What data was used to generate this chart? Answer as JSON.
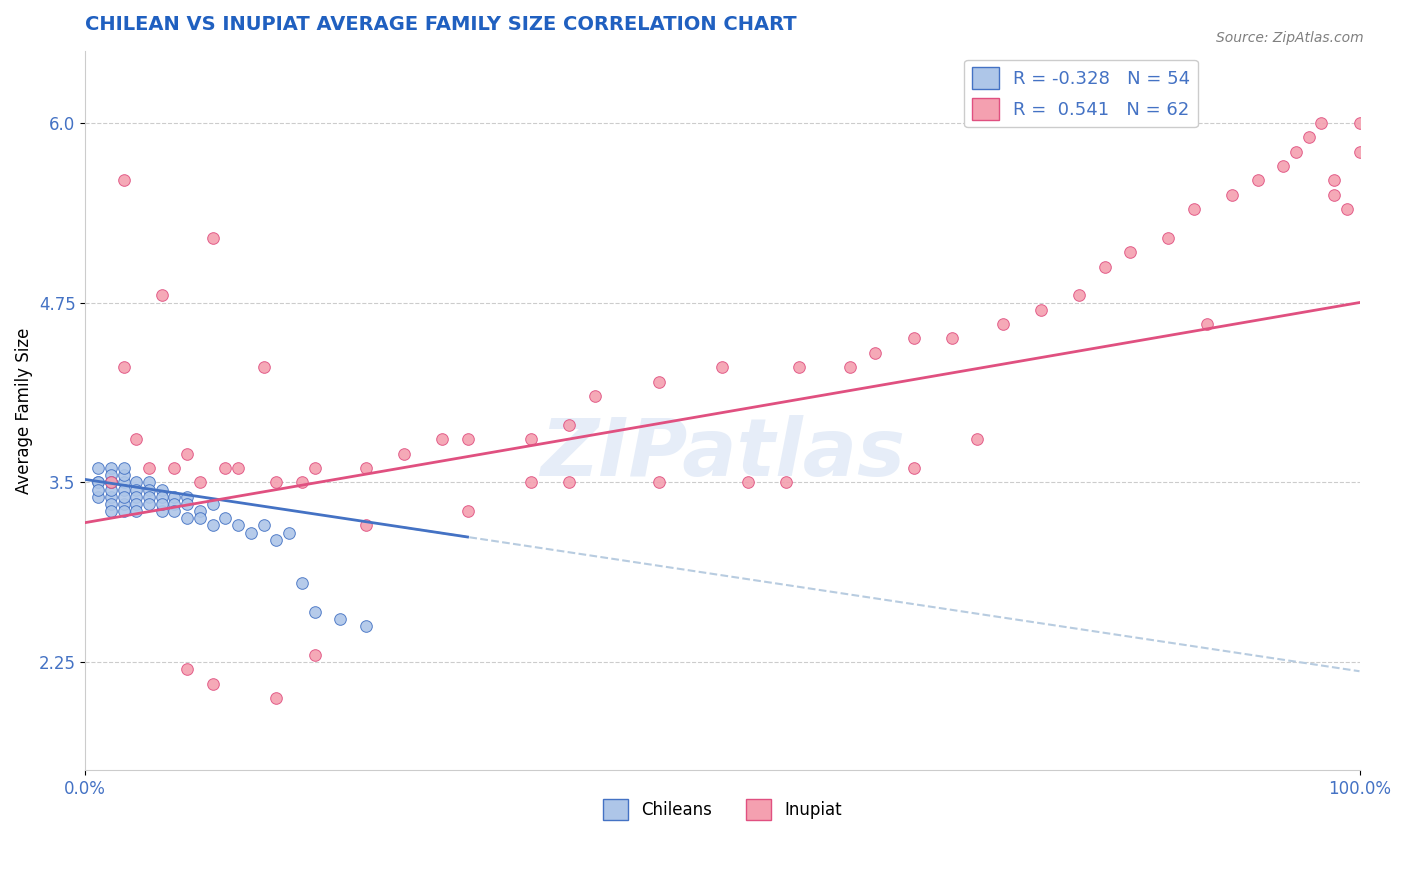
{
  "title": "CHILEAN VS INUPIAT AVERAGE FAMILY SIZE CORRELATION CHART",
  "source_text": "Source: ZipAtlas.com",
  "xlabel": "",
  "ylabel": "Average Family Size",
  "watermark": "ZIPatlas",
  "xlim": [
    0.0,
    1.0
  ],
  "ylim": [
    1.5,
    6.5
  ],
  "yticks": [
    2.25,
    3.5,
    4.75,
    6.0
  ],
  "xticks": [
    0.0,
    1.0
  ],
  "xticklabels": [
    "0.0%",
    "100.0%"
  ],
  "title_color": "#2060c0",
  "axis_color": "#4472c4",
  "legend_R1": "-0.328",
  "legend_N1": "54",
  "legend_R2": "0.541",
  "legend_N2": "62",
  "chilean_color": "#aec6e8",
  "inupiat_color": "#f4a0b0",
  "chilean_line_color": "#4472c4",
  "inupiat_line_color": "#e05080",
  "dashed_line_color": "#b8cce0",
  "grid_color": "#cccccc",
  "chilean_line_x0": 0.0,
  "chilean_line_y0": 3.52,
  "chilean_line_x1": 0.3,
  "chilean_line_y1": 3.12,
  "inupiat_line_x0": 0.0,
  "inupiat_line_y0": 3.22,
  "inupiat_line_x1": 1.0,
  "inupiat_line_y1": 4.75,
  "chilean_x": [
    0.01,
    0.01,
    0.01,
    0.01,
    0.01,
    0.02,
    0.02,
    0.02,
    0.02,
    0.02,
    0.02,
    0.02,
    0.02,
    0.02,
    0.03,
    0.03,
    0.03,
    0.03,
    0.03,
    0.03,
    0.03,
    0.04,
    0.04,
    0.04,
    0.04,
    0.04,
    0.05,
    0.05,
    0.05,
    0.05,
    0.06,
    0.06,
    0.06,
    0.06,
    0.07,
    0.07,
    0.07,
    0.08,
    0.08,
    0.08,
    0.09,
    0.09,
    0.1,
    0.1,
    0.11,
    0.12,
    0.13,
    0.14,
    0.15,
    0.16,
    0.17,
    0.18,
    0.2,
    0.22
  ],
  "chilean_y": [
    3.5,
    3.4,
    3.6,
    3.5,
    3.45,
    3.6,
    3.5,
    3.5,
    3.4,
    3.45,
    3.35,
    3.3,
    3.55,
    3.5,
    3.5,
    3.45,
    3.35,
    3.3,
    3.4,
    3.55,
    3.6,
    3.5,
    3.45,
    3.4,
    3.35,
    3.3,
    3.5,
    3.45,
    3.4,
    3.35,
    3.45,
    3.4,
    3.3,
    3.35,
    3.4,
    3.35,
    3.3,
    3.4,
    3.35,
    3.25,
    3.3,
    3.25,
    3.35,
    3.2,
    3.25,
    3.2,
    3.15,
    3.2,
    3.1,
    3.15,
    2.8,
    2.6,
    2.55,
    2.5
  ],
  "inupiat_x": [
    0.02,
    0.03,
    0.03,
    0.04,
    0.05,
    0.06,
    0.07,
    0.08,
    0.09,
    0.1,
    0.11,
    0.12,
    0.14,
    0.15,
    0.17,
    0.18,
    0.22,
    0.25,
    0.28,
    0.3,
    0.35,
    0.38,
    0.4,
    0.45,
    0.5,
    0.52,
    0.56,
    0.6,
    0.62,
    0.65,
    0.68,
    0.72,
    0.75,
    0.78,
    0.8,
    0.82,
    0.85,
    0.87,
    0.88,
    0.9,
    0.92,
    0.94,
    0.95,
    0.96,
    0.97,
    0.98,
    0.98,
    0.99,
    1.0,
    1.0,
    0.7,
    0.65,
    0.55,
    0.45,
    0.15,
    0.18,
    0.1,
    0.08,
    0.22,
    0.38,
    0.3,
    0.35
  ],
  "inupiat_y": [
    3.5,
    5.6,
    4.3,
    3.8,
    3.6,
    4.8,
    3.6,
    3.7,
    3.5,
    5.2,
    3.6,
    3.6,
    4.3,
    3.5,
    3.5,
    3.6,
    3.6,
    3.7,
    3.8,
    3.8,
    3.8,
    3.9,
    4.1,
    4.2,
    4.3,
    3.5,
    4.3,
    4.3,
    4.4,
    4.5,
    4.5,
    4.6,
    4.7,
    4.8,
    5.0,
    5.1,
    5.2,
    5.4,
    4.6,
    5.5,
    5.6,
    5.7,
    5.8,
    5.9,
    6.0,
    5.5,
    5.6,
    5.4,
    5.8,
    6.0,
    3.8,
    3.6,
    3.5,
    3.5,
    2.0,
    2.3,
    2.1,
    2.2,
    3.2,
    3.5,
    3.3,
    3.5
  ]
}
